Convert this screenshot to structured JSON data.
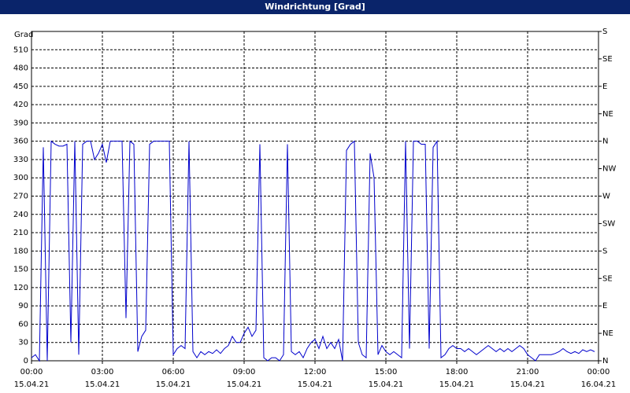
{
  "chart_data": {
    "type": "line",
    "title": "Windrichtung [Grad]",
    "y_label": "Grad",
    "color": "#0000cc",
    "grid": true,
    "xlim": [
      0,
      1440
    ],
    "xticks": [
      {
        "value": 0,
        "label": "00:00\n15.04.21"
      },
      {
        "value": 180,
        "label": "03:00\n15.04.21"
      },
      {
        "value": 360,
        "label": "06:00\n15.04.21"
      },
      {
        "value": 540,
        "label": "09:00\n15.04.21"
      },
      {
        "value": 720,
        "label": "12:00\n15.04.21"
      },
      {
        "value": 900,
        "label": "15:00\n15.04.21"
      },
      {
        "value": 1080,
        "label": "18:00\n15.04.21"
      },
      {
        "value": 1260,
        "label": "21:00\n15.04.21"
      },
      {
        "value": 1440,
        "label": "00:00\n16.04.21"
      }
    ],
    "ylim": [
      0,
      540
    ],
    "yticks": [
      0,
      30,
      60,
      90,
      120,
      150,
      180,
      210,
      240,
      270,
      300,
      330,
      360,
      390,
      420,
      450,
      480,
      510
    ],
    "y2lim": [
      0,
      540
    ],
    "y2ticks": [
      {
        "value": 0,
        "label": "N"
      },
      {
        "value": 45,
        "label": "NE"
      },
      {
        "value": 90,
        "label": "E"
      },
      {
        "value": 135,
        "label": "SE"
      },
      {
        "value": 180,
        "label": "S"
      },
      {
        "value": 225,
        "label": "SW"
      },
      {
        "value": 270,
        "label": "W"
      },
      {
        "value": 315,
        "label": "NW"
      },
      {
        "value": 360,
        "label": "N"
      },
      {
        "value": 405,
        "label": "NE"
      },
      {
        "value": 450,
        "label": "E"
      },
      {
        "value": 495,
        "label": "SE"
      },
      {
        "value": 540,
        "label": "S"
      }
    ],
    "x": [
      0,
      10,
      20,
      30,
      40,
      50,
      60,
      70,
      80,
      90,
      100,
      110,
      120,
      130,
      140,
      150,
      160,
      170,
      180,
      190,
      200,
      210,
      220,
      230,
      240,
      250,
      260,
      270,
      280,
      290,
      300,
      310,
      320,
      330,
      340,
      350,
      360,
      370,
      380,
      390,
      400,
      410,
      420,
      430,
      440,
      450,
      460,
      470,
      480,
      490,
      500,
      510,
      520,
      530,
      540,
      550,
      560,
      570,
      580,
      590,
      600,
      610,
      620,
      630,
      640,
      650,
      660,
      670,
      680,
      690,
      700,
      710,
      720,
      730,
      740,
      750,
      760,
      770,
      780,
      790,
      800,
      810,
      820,
      830,
      840,
      850,
      860,
      870,
      880,
      890,
      900,
      910,
      920,
      930,
      940,
      950,
      960,
      970,
      980,
      990,
      1000,
      1010,
      1020,
      1030,
      1040,
      1050,
      1060,
      1070,
      1080,
      1090,
      1100,
      1110,
      1120,
      1130,
      1140,
      1150,
      1160,
      1170,
      1180,
      1190,
      1200,
      1210,
      1220,
      1230,
      1240,
      1250,
      1260,
      1270,
      1280,
      1290,
      1300,
      1310,
      1320,
      1330,
      1340,
      1350,
      1360,
      1370,
      1380,
      1390,
      1400,
      1410,
      1420,
      1430
    ],
    "values": [
      5,
      10,
      0,
      350,
      0,
      360,
      355,
      352,
      352,
      355,
      30,
      360,
      10,
      355,
      360,
      360,
      330,
      340,
      355,
      325,
      360,
      360,
      360,
      360,
      70,
      360,
      355,
      15,
      40,
      50,
      355,
      360,
      360,
      360,
      360,
      360,
      10,
      20,
      25,
      20,
      360,
      15,
      5,
      15,
      10,
      15,
      12,
      18,
      12,
      20,
      25,
      40,
      30,
      30,
      45,
      55,
      40,
      50,
      355,
      5,
      0,
      5,
      5,
      0,
      10,
      355,
      15,
      10,
      15,
      5,
      20,
      30,
      35,
      20,
      40,
      20,
      30,
      20,
      35,
      0,
      345,
      355,
      360,
      30,
      10,
      5,
      340,
      300,
      10,
      25,
      15,
      10,
      15,
      10,
      5,
      360,
      20,
      360,
      360,
      355,
      355,
      20,
      350,
      360,
      5,
      10,
      20,
      25,
      20,
      20,
      15,
      20,
      15,
      10,
      15,
      20,
      25,
      20,
      15,
      20,
      15,
      20,
      15,
      20,
      25,
      20,
      10,
      5,
      0,
      10,
      10,
      10,
      10,
      12,
      15,
      20,
      15,
      12,
      15,
      12,
      18,
      15,
      18,
      15
    ]
  }
}
